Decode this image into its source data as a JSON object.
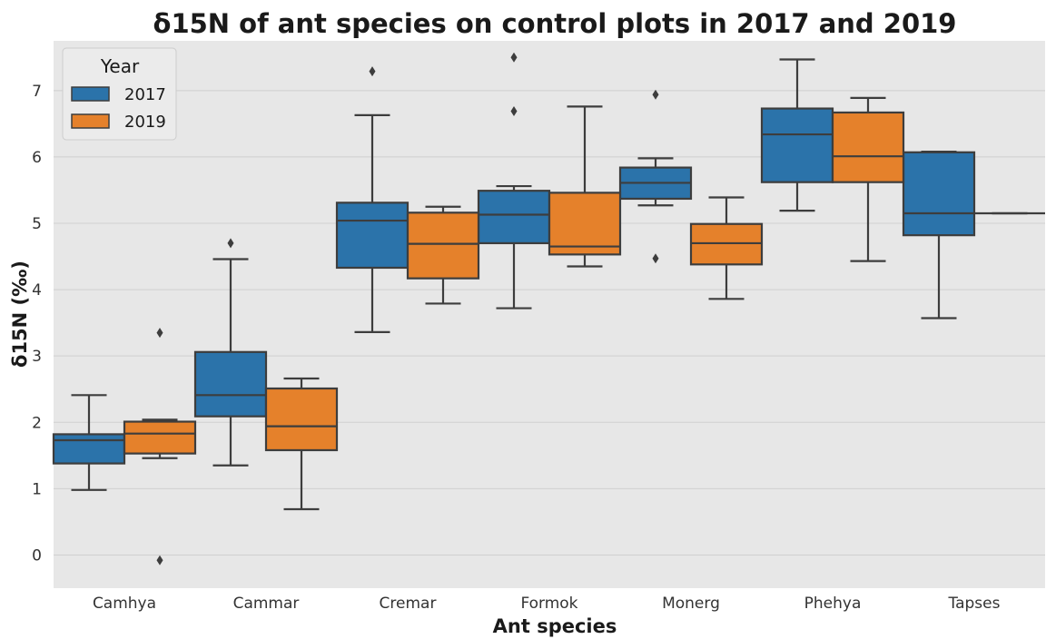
{
  "chart_data": {
    "type": "box",
    "title": "δ15N of ant species on control plots in 2017 and 2019",
    "xlabel": "Ant species",
    "ylabel": "δ15N (‰)",
    "ylim": [
      -0.5,
      7.75
    ],
    "yticks": [
      0,
      1,
      2,
      3,
      4,
      5,
      6,
      7
    ],
    "grid": true,
    "legend": {
      "title": "Year",
      "position": "top-left"
    },
    "categories": [
      "Camhya",
      "Cammar",
      "Cremar",
      "Formok",
      "Monerg",
      "Phehya",
      "Tapses"
    ],
    "series": [
      {
        "name": "2017",
        "color": "#2b73aa",
        "boxes": [
          {
            "whisker_low": 0.98,
            "q1": 1.38,
            "median": 1.73,
            "q3": 1.82,
            "whisker_high": 2.41,
            "outliers": []
          },
          {
            "whisker_low": 1.35,
            "q1": 2.09,
            "median": 2.41,
            "q3": 3.06,
            "whisker_high": 4.46,
            "outliers": [
              4.7
            ]
          },
          {
            "whisker_low": 3.36,
            "q1": 4.33,
            "median": 5.04,
            "q3": 5.31,
            "whisker_high": 6.63,
            "outliers": [
              7.29
            ]
          },
          {
            "whisker_low": 3.72,
            "q1": 4.7,
            "median": 5.13,
            "q3": 5.49,
            "whisker_high": 5.56,
            "outliers": [
              6.69,
              7.5
            ]
          },
          {
            "whisker_low": 5.27,
            "q1": 5.37,
            "median": 5.61,
            "q3": 5.84,
            "whisker_high": 5.98,
            "outliers": [
              4.47,
              6.94
            ]
          },
          {
            "whisker_low": 5.19,
            "q1": 5.62,
            "median": 6.34,
            "q3": 6.73,
            "whisker_high": 7.47,
            "outliers": []
          },
          {
            "whisker_low": 3.57,
            "q1": 4.82,
            "median": 5.15,
            "q3": 6.07,
            "whisker_high": 6.08,
            "outliers": []
          }
        ]
      },
      {
        "name": "2019",
        "color": "#e5812b",
        "boxes": [
          {
            "whisker_low": 1.46,
            "q1": 1.53,
            "median": 1.83,
            "q3": 2.01,
            "whisker_high": 2.04,
            "outliers": [
              3.35,
              -0.08
            ]
          },
          {
            "whisker_low": 0.69,
            "q1": 1.58,
            "median": 1.94,
            "q3": 2.51,
            "whisker_high": 2.66,
            "outliers": []
          },
          {
            "whisker_low": 3.79,
            "q1": 4.17,
            "median": 4.69,
            "q3": 5.16,
            "whisker_high": 5.25,
            "outliers": []
          },
          {
            "whisker_low": 4.35,
            "q1": 4.53,
            "median": 4.65,
            "q3": 5.46,
            "whisker_high": 6.76,
            "outliers": []
          },
          {
            "whisker_low": 3.86,
            "q1": 4.38,
            "median": 4.7,
            "q3": 4.99,
            "whisker_high": 5.39,
            "outliers": []
          },
          {
            "whisker_low": 4.43,
            "q1": 5.62,
            "median": 6.01,
            "q3": 6.67,
            "whisker_high": 6.89,
            "outliers": []
          },
          {
            "whisker_low": 5.15,
            "q1": 5.15,
            "median": 5.15,
            "q3": 5.15,
            "whisker_high": 5.15,
            "outliers": []
          }
        ]
      }
    ]
  }
}
